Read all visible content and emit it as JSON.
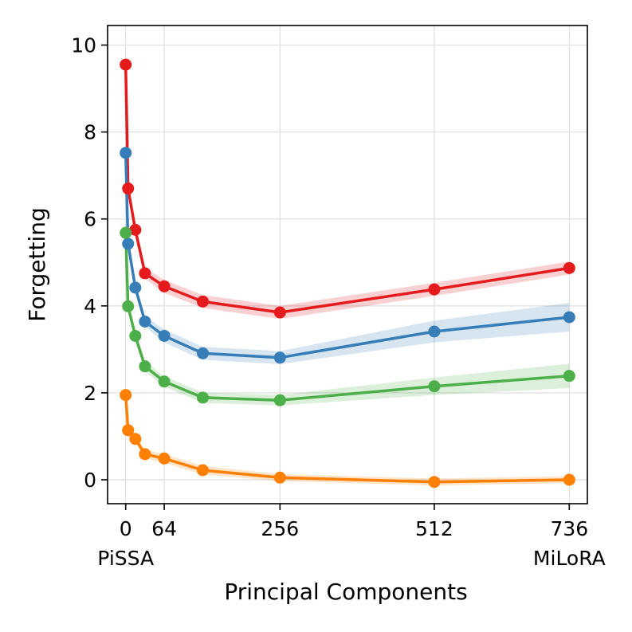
{
  "chart_data": {
    "type": "line",
    "title": "",
    "xlabel": "Principal Components",
    "ylabel": "Forgetting",
    "xlim": [
      -30,
      766
    ],
    "ylim": [
      -0.55,
      10.45
    ],
    "grid": true,
    "x": [
      0,
      4,
      16,
      32,
      64,
      128,
      256,
      512,
      736
    ],
    "x_ticks": [
      {
        "value": 0,
        "label": "0"
      },
      {
        "value": 64,
        "label": "64"
      },
      {
        "value": 256,
        "label": "256"
      },
      {
        "value": 512,
        "label": "512"
      },
      {
        "value": 736,
        "label": "736"
      }
    ],
    "x_tick_sublabels": [
      {
        "value": 0,
        "label": "PiSSA"
      },
      {
        "value": 736,
        "label": "MiLoRA"
      }
    ],
    "y_ticks": [
      {
        "value": 0,
        "label": "0"
      },
      {
        "value": 2,
        "label": "2"
      },
      {
        "value": 4,
        "label": "4"
      },
      {
        "value": 6,
        "label": "6"
      },
      {
        "value": 8,
        "label": "8"
      },
      {
        "value": 10,
        "label": "10"
      }
    ],
    "series": [
      {
        "name": "red",
        "color": "#e41a1c",
        "values": [
          9.55,
          6.7,
          5.75,
          4.75,
          4.45,
          4.1,
          3.85,
          4.38,
          4.87
        ],
        "band": [
          0.1,
          0.12,
          0.12,
          0.12,
          0.15,
          0.15,
          0.15,
          0.15,
          0.15
        ]
      },
      {
        "name": "blue",
        "color": "#377eb8",
        "values": [
          7.52,
          5.43,
          4.42,
          3.64,
          3.31,
          2.91,
          2.81,
          3.41,
          3.74
        ],
        "band": [
          0.1,
          0.12,
          0.12,
          0.12,
          0.15,
          0.15,
          0.15,
          0.25,
          0.33
        ]
      },
      {
        "name": "green",
        "color": "#4daf4a",
        "values": [
          5.68,
          3.99,
          3.31,
          2.61,
          2.26,
          1.89,
          1.83,
          2.15,
          2.39
        ],
        "band": [
          0.1,
          0.12,
          0.12,
          0.12,
          0.12,
          0.12,
          0.12,
          0.2,
          0.28
        ]
      },
      {
        "name": "orange",
        "color": "#ff7f00",
        "values": [
          1.95,
          1.14,
          0.94,
          0.59,
          0.49,
          0.22,
          0.05,
          -0.05,
          0.0
        ],
        "band": [
          0.08,
          0.1,
          0.1,
          0.1,
          0.1,
          0.1,
          0.08,
          0.08,
          0.08
        ]
      }
    ]
  }
}
